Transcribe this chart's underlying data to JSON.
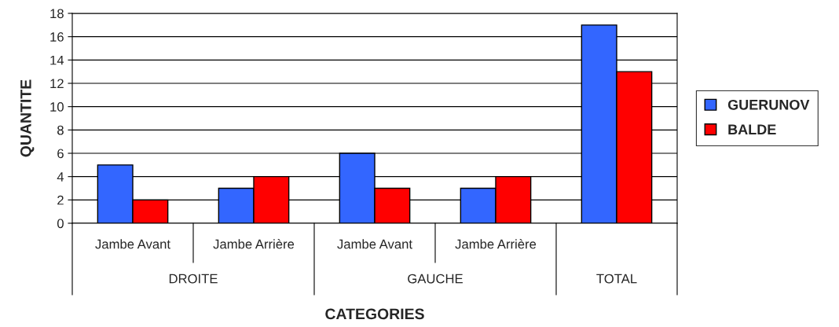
{
  "chart_data": {
    "type": "bar",
    "xlabel": "CATEGORIES",
    "ylabel": "QUANTITE",
    "categories": [
      "Jambe Avant",
      "Jambe Arrière",
      "Jambe Avant",
      "Jambe Arrière",
      null
    ],
    "series": [
      {
        "name": "GUERUNOV",
        "color": "#3366ff",
        "values": [
          5,
          3,
          6,
          3,
          17
        ]
      },
      {
        "name": "BALDE",
        "color": "#ff0000",
        "values": [
          2,
          4,
          3,
          4,
          13
        ]
      }
    ],
    "annotations": [
      "DROITE",
      "GAUCHE",
      "TOTAL"
    ],
    "ylim": [
      0,
      18
    ],
    "yticks": [
      0,
      2,
      4,
      6,
      8,
      10,
      12,
      14,
      16,
      18
    ],
    "grid": "y",
    "legend": "right"
  }
}
